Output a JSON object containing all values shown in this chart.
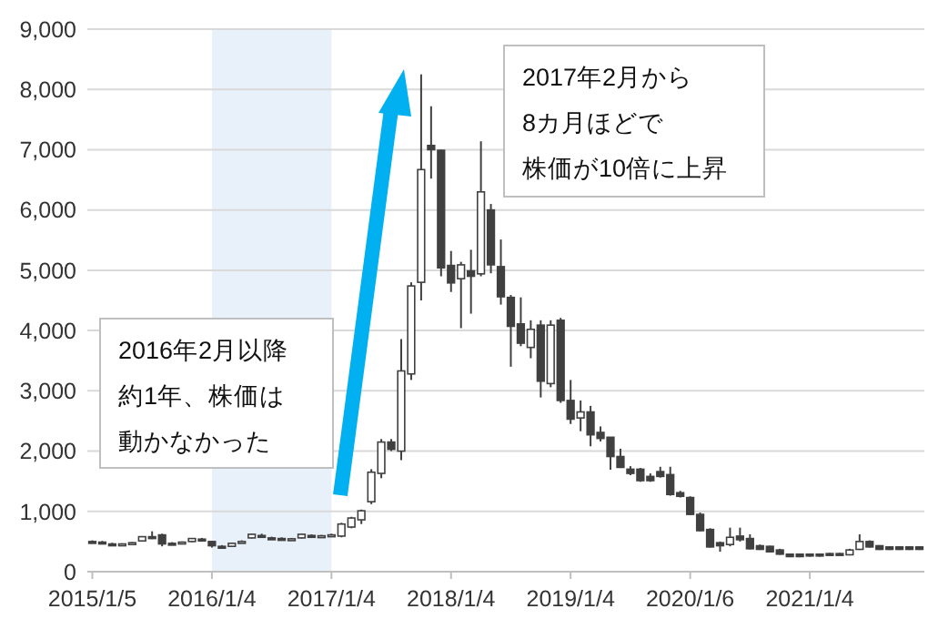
{
  "chart_data": {
    "type": "candlestick",
    "color": "#404040",
    "grid": "y",
    "categories": [
      "2015/1/5",
      null,
      null,
      null,
      null,
      null,
      null,
      null,
      null,
      null,
      null,
      null,
      "2016/1/4",
      null,
      null,
      null,
      null,
      null,
      null,
      null,
      null,
      null,
      null,
      null,
      "2017/1/4",
      null,
      null,
      null,
      null,
      null,
      null,
      null,
      null,
      null,
      null,
      null,
      "2018/1/4",
      null,
      null,
      null,
      null,
      null,
      null,
      null,
      null,
      null,
      null,
      null,
      "2019/1/4",
      null,
      null,
      null,
      null,
      null,
      null,
      null,
      null,
      null,
      null,
      null,
      "2020/1/6",
      null,
      null,
      null,
      null,
      null,
      null,
      null,
      null,
      null,
      null,
      null,
      "2021/1/4",
      null,
      null,
      null,
      null,
      null,
      null,
      null,
      null,
      null,
      null,
      null
    ],
    "ohlc": [
      [
        500,
        520,
        480,
        490
      ],
      [
        490,
        510,
        470,
        480
      ],
      [
        460,
        480,
        440,
        450
      ],
      [
        450,
        470,
        440,
        460
      ],
      [
        470,
        490,
        460,
        480
      ],
      [
        510,
        590,
        500,
        580
      ],
      [
        580,
        670,
        540,
        560
      ],
      [
        610,
        630,
        420,
        460
      ],
      [
        470,
        490,
        450,
        460
      ],
      [
        470,
        500,
        460,
        490
      ],
      [
        500,
        560,
        490,
        550
      ],
      [
        540,
        560,
        510,
        520
      ],
      [
        500,
        510,
        400,
        430
      ],
      [
        420,
        440,
        380,
        400
      ],
      [
        420,
        480,
        410,
        470
      ],
      [
        490,
        520,
        480,
        500
      ],
      [
        560,
        630,
        550,
        620
      ],
      [
        600,
        630,
        570,
        590
      ],
      [
        560,
        580,
        540,
        550
      ],
      [
        550,
        570,
        530,
        540
      ],
      [
        540,
        560,
        530,
        545
      ],
      [
        560,
        630,
        550,
        620
      ],
      [
        600,
        620,
        580,
        590
      ],
      [
        590,
        610,
        580,
        595
      ],
      [
        600,
        630,
        590,
        610
      ],
      [
        590,
        810,
        570,
        790
      ],
      [
        740,
        910,
        720,
        890
      ],
      [
        860,
        1030,
        790,
        1010
      ],
      [
        1160,
        1700,
        1120,
        1650
      ],
      [
        1630,
        2200,
        1550,
        2150
      ],
      [
        2150,
        2200,
        2000,
        2030
      ],
      [
        2000,
        3860,
        1850,
        3330
      ],
      [
        3280,
        4800,
        3180,
        4740
      ],
      [
        4800,
        8250,
        4500,
        6670
      ],
      [
        7070,
        7720,
        6520,
        7000
      ],
      [
        6990,
        7000,
        4900,
        5040
      ],
      [
        5080,
        5320,
        4640,
        4790
      ],
      [
        4860,
        5140,
        4040,
        5090
      ],
      [
        4990,
        5340,
        4280,
        4900
      ],
      [
        4940,
        7140,
        4900,
        6300
      ],
      [
        6000,
        6100,
        4950,
        5090
      ],
      [
        5060,
        5510,
        4430,
        4560
      ],
      [
        4550,
        4590,
        3400,
        4070
      ],
      [
        4110,
        4550,
        3740,
        3790
      ],
      [
        3720,
        4170,
        3540,
        4020
      ],
      [
        4090,
        4170,
        2890,
        3160
      ],
      [
        3120,
        4170,
        3060,
        4090
      ],
      [
        4170,
        4210,
        2800,
        2840
      ],
      [
        2840,
        3180,
        2450,
        2530
      ],
      [
        2550,
        2840,
        2330,
        2650
      ],
      [
        2650,
        2750,
        2080,
        2270
      ],
      [
        2310,
        2410,
        2160,
        2210
      ],
      [
        2230,
        2230,
        1690,
        1910
      ],
      [
        1910,
        2040,
        1720,
        1730
      ],
      [
        1700,
        1750,
        1600,
        1630
      ],
      [
        1700,
        1720,
        1490,
        1510
      ],
      [
        1580,
        1630,
        1490,
        1510
      ],
      [
        1660,
        1740,
        1560,
        1580
      ],
      [
        1610,
        1740,
        1260,
        1280
      ],
      [
        1310,
        1340,
        1230,
        1250
      ],
      [
        1230,
        1250,
        940,
        950
      ],
      [
        950,
        980,
        670,
        680
      ],
      [
        700,
        720,
        400,
        410
      ],
      [
        480,
        500,
        330,
        430
      ],
      [
        450,
        730,
        420,
        570
      ],
      [
        590,
        730,
        500,
        530
      ],
      [
        550,
        620,
        370,
        380
      ],
      [
        430,
        450,
        360,
        370
      ],
      [
        420,
        430,
        320,
        330
      ],
      [
        360,
        380,
        280,
        290
      ],
      [
        290,
        300,
        240,
        250
      ],
      [
        290,
        300,
        240,
        250
      ],
      [
        290,
        300,
        250,
        260
      ],
      [
        290,
        300,
        250,
        260
      ],
      [
        300,
        310,
        270,
        280
      ],
      [
        300,
        310,
        270,
        280
      ],
      [
        280,
        380,
        270,
        360
      ],
      [
        370,
        620,
        360,
        500
      ],
      [
        500,
        520,
        400,
        410
      ],
      [
        430,
        440,
        360,
        370
      ],
      [
        410,
        420,
        360,
        370
      ],
      [
        410,
        420,
        360,
        370
      ],
      [
        410,
        420,
        360,
        370
      ],
      [
        410,
        420,
        360,
        370
      ]
    ],
    "ylim": [
      0,
      9000
    ],
    "yticks": [
      0,
      {
        "value": 1000,
        "label": "1,000"
      },
      {
        "value": 2000,
        "label": "2,000"
      },
      {
        "value": 3000,
        "label": "3,000"
      },
      {
        "value": 4000,
        "label": "4,000"
      },
      {
        "value": 5000,
        "label": "5,000"
      },
      {
        "value": 6000,
        "label": "6,000"
      },
      {
        "value": 7000,
        "label": "7,000"
      },
      {
        "value": 8000,
        "label": "8,000"
      },
      {
        "value": 9000,
        "label": "9,000"
      }
    ],
    "bands": [
      {
        "axis": "x",
        "from": "2016/1/4",
        "to": "2017/1/4",
        "color": "#e8f0f9"
      }
    ],
    "annotations": [
      "2016年2月以降約1年、株価は動かなかった",
      "2017年2月から8カ月ほどで株価が10倍に上昇"
    ]
  }
}
